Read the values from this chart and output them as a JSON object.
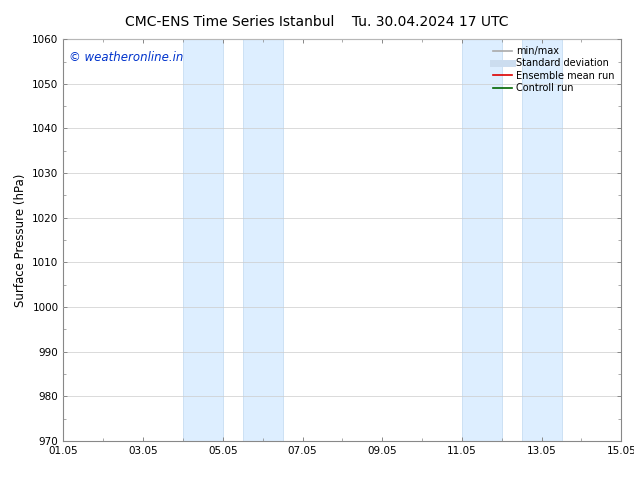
{
  "title_left": "CMC-ENS Time Series Istanbul",
  "title_right": "Tu. 30.04.2024 17 UTC",
  "ylabel": "Surface Pressure (hPa)",
  "ylim": [
    970,
    1060
  ],
  "yticks": [
    970,
    980,
    990,
    1000,
    1010,
    1020,
    1030,
    1040,
    1050,
    1060
  ],
  "xtick_labels": [
    "01.05",
    "03.05",
    "05.05",
    "07.05",
    "09.05",
    "11.05",
    "13.05",
    "15.05"
  ],
  "xtick_positions": [
    0,
    2,
    4,
    6,
    8,
    10,
    12,
    14
  ],
  "xlim": [
    0,
    14
  ],
  "shaded_regions": [
    {
      "x_start": 3.0,
      "x_end": 4.0
    },
    {
      "x_start": 4.5,
      "x_end": 5.5
    },
    {
      "x_start": 10.0,
      "x_end": 11.0
    },
    {
      "x_start": 11.5,
      "x_end": 12.5
    }
  ],
  "shaded_color": "#ddeeff",
  "shaded_edge_color": "#c0d8f0",
  "background_color": "#ffffff",
  "watermark_text": "© weatheronline.in",
  "watermark_color": "#0033cc",
  "legend_entries": [
    {
      "label": "min/max",
      "color": "#aaaaaa",
      "lw": 1.2,
      "style": "solid"
    },
    {
      "label": "Standard deviation",
      "color": "#ccddef",
      "lw": 5,
      "style": "solid"
    },
    {
      "label": "Ensemble mean run",
      "color": "#dd0000",
      "lw": 1.2,
      "style": "solid"
    },
    {
      "label": "Controll run",
      "color": "#006600",
      "lw": 1.2,
      "style": "solid"
    }
  ],
  "title_fontsize": 10,
  "axis_fontsize": 8.5,
  "tick_fontsize": 7.5,
  "watermark_fontsize": 8.5,
  "legend_fontsize": 7,
  "grid_color": "#cccccc",
  "spine_color": "#888888"
}
